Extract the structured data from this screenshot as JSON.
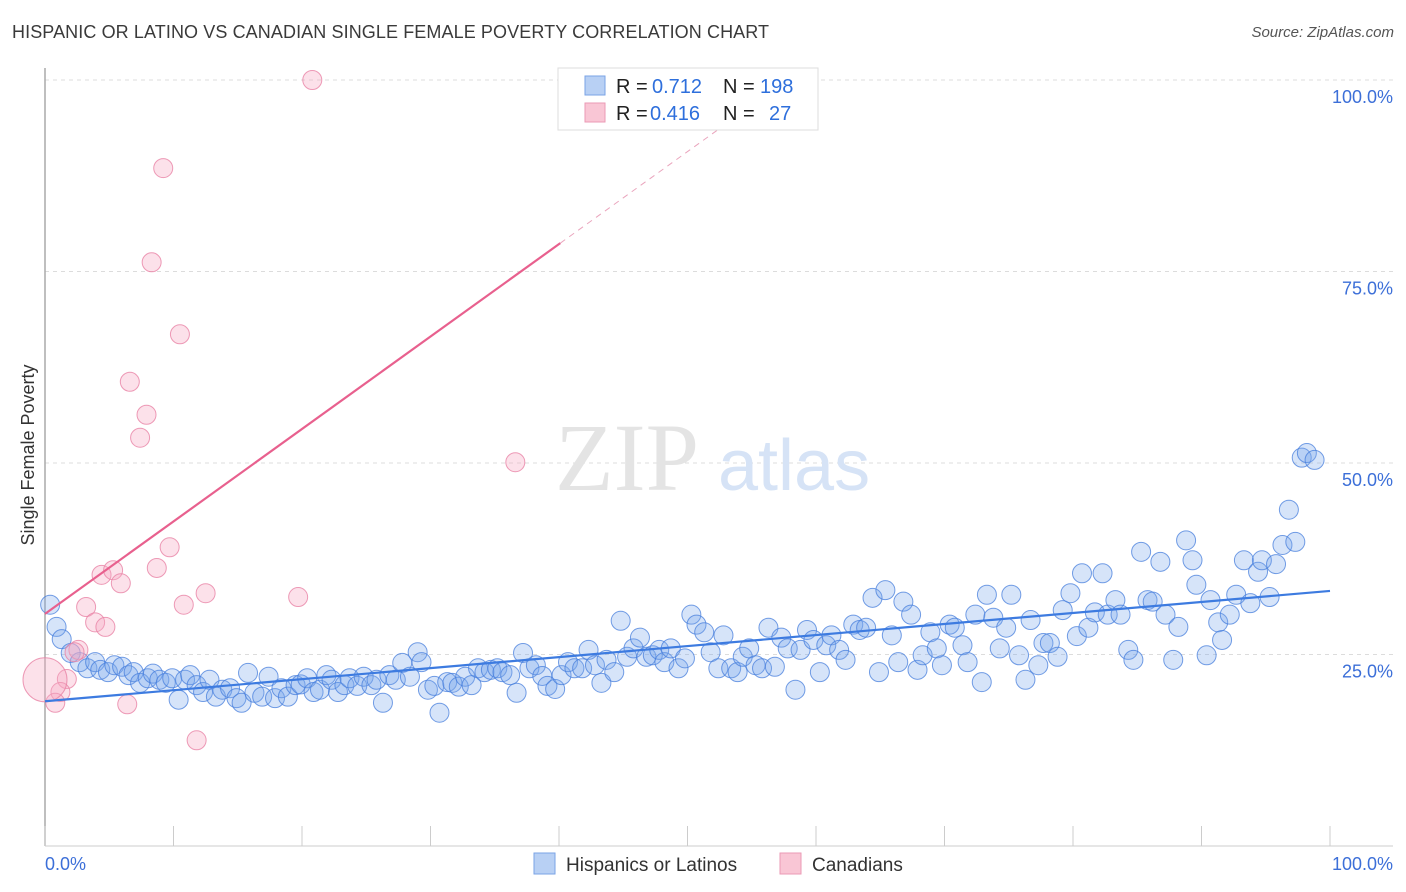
{
  "title": "HISPANIC OR LATINO VS CANADIAN SINGLE FEMALE POVERTY CORRELATION CHART",
  "source": "Source: ZipAtlas.com",
  "watermark": {
    "zip": "ZIP",
    "atlas": "atlas"
  },
  "colors": {
    "blue": "#3d7be0",
    "blue_fill": "#a9c8f2",
    "pink": "#e8608e",
    "pink_fill": "#f7bfd0",
    "axis_label": "#3c6fd8"
  },
  "chart_data": {
    "type": "scatter",
    "title": "HISPANIC OR LATINO VS CANADIAN SINGLE FEMALE POVERTY CORRELATION CHART",
    "xlabel": "",
    "ylabel": "Single Female Poverty",
    "xlim": [
      0,
      100
    ],
    "ylim": [
      0,
      100
    ],
    "x_tick_labels": [
      "0.0%",
      "100.0%"
    ],
    "y_tick_labels": [
      {
        "value": 100,
        "label": "100.0%"
      },
      {
        "value": 75,
        "label": "75.0%"
      },
      {
        "value": 50,
        "label": "50.0%"
      },
      {
        "value": 25,
        "label": "25.0%"
      }
    ],
    "grid": true,
    "legend_position": "top-center",
    "stats": [
      {
        "r_label": "R =",
        "r": "0.712",
        "n_label": "N =",
        "n": "198"
      },
      {
        "r_label": "R =",
        "r": "0.416",
        "n_label": "N =",
        "n": "27"
      }
    ],
    "series": [
      {
        "name": "Hispanics or Latinos",
        "trend": {
          "x": [
            0,
            100
          ],
          "y": [
            18.9,
            33.3
          ]
        },
        "points": [
          [
            0.4,
            31.5
          ],
          [
            0.9,
            28.6
          ],
          [
            1.3,
            27.0
          ],
          [
            2.0,
            25.2
          ],
          [
            2.7,
            24.0
          ],
          [
            3.3,
            23.2
          ],
          [
            3.9,
            24.0
          ],
          [
            4.3,
            23.0
          ],
          [
            4.9,
            22.7
          ],
          [
            5.4,
            23.6
          ],
          [
            6.0,
            23.4
          ],
          [
            6.5,
            22.3
          ],
          [
            6.9,
            22.7
          ],
          [
            7.4,
            21.3
          ],
          [
            8.0,
            21.9
          ],
          [
            8.4,
            22.5
          ],
          [
            8.9,
            21.7
          ],
          [
            9.4,
            21.3
          ],
          [
            9.9,
            21.9
          ],
          [
            10.4,
            19.1
          ],
          [
            10.9,
            21.7
          ],
          [
            11.3,
            22.3
          ],
          [
            11.8,
            21.0
          ],
          [
            12.3,
            20.1
          ],
          [
            12.8,
            21.7
          ],
          [
            13.3,
            19.5
          ],
          [
            13.8,
            20.4
          ],
          [
            14.4,
            20.6
          ],
          [
            14.9,
            19.3
          ],
          [
            15.3,
            18.7
          ],
          [
            15.8,
            22.6
          ],
          [
            16.3,
            20.0
          ],
          [
            16.9,
            19.5
          ],
          [
            17.4,
            22.1
          ],
          [
            17.9,
            19.3
          ],
          [
            18.4,
            20.6
          ],
          [
            18.9,
            19.5
          ],
          [
            19.5,
            21.0
          ],
          [
            19.9,
            21.1
          ],
          [
            20.4,
            21.9
          ],
          [
            20.9,
            20.1
          ],
          [
            21.4,
            20.4
          ],
          [
            21.9,
            22.3
          ],
          [
            22.3,
            21.7
          ],
          [
            22.8,
            20.1
          ],
          [
            23.3,
            21.0
          ],
          [
            23.7,
            21.9
          ],
          [
            24.3,
            20.9
          ],
          [
            24.8,
            22.1
          ],
          [
            25.4,
            21.0
          ],
          [
            25.8,
            21.7
          ],
          [
            26.3,
            18.7
          ],
          [
            26.8,
            22.3
          ],
          [
            27.3,
            21.7
          ],
          [
            27.8,
            23.9
          ],
          [
            28.4,
            22.1
          ],
          [
            29.0,
            25.3
          ],
          [
            29.3,
            24.0
          ],
          [
            29.8,
            20.4
          ],
          [
            30.3,
            20.9
          ],
          [
            30.7,
            17.4
          ],
          [
            31.3,
            21.4
          ],
          [
            31.7,
            21.3
          ],
          [
            32.2,
            20.8
          ],
          [
            32.7,
            22.1
          ],
          [
            33.2,
            21.0
          ],
          [
            33.7,
            23.2
          ],
          [
            34.2,
            22.7
          ],
          [
            34.7,
            23.0
          ],
          [
            35.2,
            23.2
          ],
          [
            35.6,
            22.7
          ],
          [
            36.2,
            22.3
          ],
          [
            36.7,
            20.0
          ],
          [
            37.2,
            25.2
          ],
          [
            37.7,
            23.2
          ],
          [
            38.2,
            23.6
          ],
          [
            38.7,
            22.2
          ],
          [
            39.1,
            20.9
          ],
          [
            39.7,
            20.5
          ],
          [
            40.2,
            22.3
          ],
          [
            40.7,
            24.0
          ],
          [
            41.2,
            23.2
          ],
          [
            41.8,
            23.2
          ],
          [
            42.3,
            25.6
          ],
          [
            42.8,
            23.6
          ],
          [
            43.3,
            21.3
          ],
          [
            43.7,
            24.3
          ],
          [
            44.3,
            22.7
          ],
          [
            44.8,
            29.4
          ],
          [
            45.3,
            24.7
          ],
          [
            45.8,
            25.8
          ],
          [
            46.3,
            27.2
          ],
          [
            46.8,
            24.7
          ],
          [
            47.3,
            24.9
          ],
          [
            47.8,
            25.6
          ],
          [
            48.2,
            24.0
          ],
          [
            48.7,
            25.8
          ],
          [
            49.3,
            23.2
          ],
          [
            49.8,
            24.5
          ],
          [
            50.3,
            30.2
          ],
          [
            50.7,
            28.9
          ],
          [
            51.3,
            27.9
          ],
          [
            51.8,
            25.3
          ],
          [
            52.4,
            23.2
          ],
          [
            52.8,
            27.5
          ],
          [
            53.4,
            23.2
          ],
          [
            53.9,
            22.7
          ],
          [
            54.3,
            24.7
          ],
          [
            54.8,
            25.8
          ],
          [
            55.3,
            23.6
          ],
          [
            55.8,
            23.2
          ],
          [
            56.3,
            28.5
          ],
          [
            56.8,
            23.4
          ],
          [
            57.3,
            27.2
          ],
          [
            57.8,
            25.8
          ],
          [
            58.4,
            20.4
          ],
          [
            58.8,
            25.6
          ],
          [
            59.3,
            28.2
          ],
          [
            59.8,
            26.9
          ],
          [
            60.3,
            22.7
          ],
          [
            60.8,
            26.2
          ],
          [
            61.2,
            27.5
          ],
          [
            61.8,
            25.6
          ],
          [
            62.3,
            24.3
          ],
          [
            62.9,
            28.9
          ],
          [
            63.4,
            28.2
          ],
          [
            63.9,
            28.5
          ],
          [
            64.4,
            32.4
          ],
          [
            64.9,
            22.7
          ],
          [
            65.4,
            33.4
          ],
          [
            65.9,
            27.5
          ],
          [
            66.4,
            24.0
          ],
          [
            66.8,
            31.9
          ],
          [
            67.4,
            30.2
          ],
          [
            67.9,
            23.0
          ],
          [
            68.3,
            24.9
          ],
          [
            68.9,
            27.9
          ],
          [
            69.4,
            25.8
          ],
          [
            69.8,
            23.6
          ],
          [
            70.4,
            28.9
          ],
          [
            70.8,
            28.5
          ],
          [
            71.4,
            26.2
          ],
          [
            71.8,
            24.0
          ],
          [
            72.4,
            30.2
          ],
          [
            72.9,
            21.4
          ],
          [
            73.3,
            32.8
          ],
          [
            73.8,
            29.8
          ],
          [
            74.3,
            25.8
          ],
          [
            74.8,
            28.5
          ],
          [
            75.2,
            32.8
          ],
          [
            75.8,
            24.9
          ],
          [
            76.3,
            21.7
          ],
          [
            76.7,
            29.5
          ],
          [
            77.3,
            23.6
          ],
          [
            77.7,
            26.5
          ],
          [
            78.2,
            26.5
          ],
          [
            78.8,
            24.7
          ],
          [
            79.2,
            30.8
          ],
          [
            79.8,
            33.0
          ],
          [
            80.3,
            27.4
          ],
          [
            80.7,
            35.6
          ],
          [
            81.2,
            28.5
          ],
          [
            81.7,
            30.5
          ],
          [
            82.3,
            35.6
          ],
          [
            82.7,
            30.2
          ],
          [
            83.3,
            32.1
          ],
          [
            83.7,
            30.2
          ],
          [
            84.3,
            25.6
          ],
          [
            84.7,
            24.3
          ],
          [
            85.3,
            38.4
          ],
          [
            85.8,
            32.1
          ],
          [
            86.2,
            31.9
          ],
          [
            86.8,
            37.1
          ],
          [
            87.2,
            30.2
          ],
          [
            87.8,
            24.3
          ],
          [
            88.2,
            28.6
          ],
          [
            88.8,
            39.9
          ],
          [
            89.3,
            37.3
          ],
          [
            89.6,
            34.1
          ],
          [
            90.4,
            24.9
          ],
          [
            90.7,
            32.1
          ],
          [
            91.3,
            29.2
          ],
          [
            91.6,
            26.9
          ],
          [
            92.2,
            30.2
          ],
          [
            92.7,
            32.8
          ],
          [
            93.3,
            37.3
          ],
          [
            93.8,
            31.7
          ],
          [
            94.4,
            35.8
          ],
          [
            94.7,
            37.3
          ],
          [
            95.3,
            32.5
          ],
          [
            95.8,
            36.8
          ],
          [
            96.3,
            39.3
          ],
          [
            96.8,
            43.9
          ],
          [
            97.3,
            39.7
          ],
          [
            97.8,
            50.7
          ],
          [
            98.2,
            51.3
          ],
          [
            98.8,
            50.4
          ]
        ]
      },
      {
        "name": "Canadians",
        "trend": {
          "x": [
            0,
            40.1
          ],
          "y": [
            30.3,
            78.7
          ],
          "dashed_extension_to_x": 100
        },
        "points": [
          [
            20.8,
            100
          ],
          [
            9.2,
            88.5
          ],
          [
            8.3,
            76.2
          ],
          [
            10.5,
            66.8
          ],
          [
            6.6,
            60.6
          ],
          [
            7.9,
            56.3
          ],
          [
            7.4,
            53.3
          ],
          [
            36.6,
            50.1
          ],
          [
            9.7,
            39.0
          ],
          [
            8.7,
            36.3
          ],
          [
            4.4,
            35.4
          ],
          [
            5.3,
            36.0
          ],
          [
            5.9,
            34.3
          ],
          [
            12.5,
            33.0
          ],
          [
            19.7,
            32.5
          ],
          [
            3.2,
            31.2
          ],
          [
            10.8,
            31.5
          ],
          [
            3.9,
            29.2
          ],
          [
            4.7,
            28.6
          ],
          [
            2.6,
            25.6
          ],
          [
            1.7,
            21.8
          ],
          [
            1.2,
            20.1
          ],
          [
            0.8,
            18.7
          ],
          [
            6.4,
            18.5
          ],
          [
            11.8,
            13.8
          ],
          [
            0.0,
            21.7
          ],
          [
            2.3,
            25.3
          ]
        ]
      }
    ]
  }
}
